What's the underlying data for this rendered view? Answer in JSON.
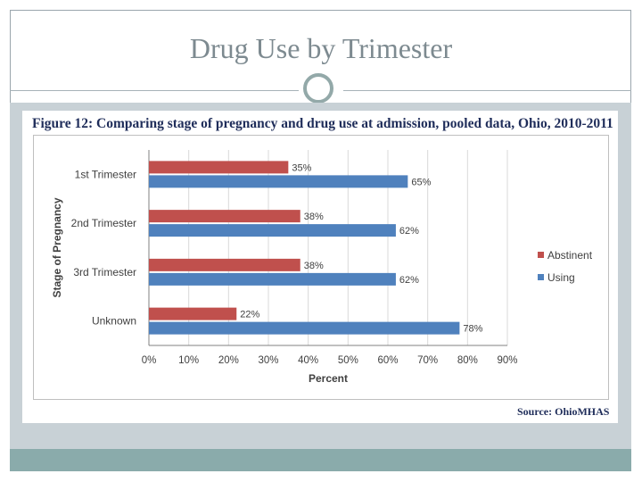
{
  "slide": {
    "title": "Drug Use by Trimester"
  },
  "figure": {
    "caption": "Figure 12: Comparing stage of pregnancy and drug use at admission, pooled data, Ohio, 2010-2011",
    "source": "Source: OhioMHAS"
  },
  "colors": {
    "abstinent": "#c0504d",
    "using": "#4f81bd"
  },
  "chart_data": {
    "type": "bar",
    "orientation": "horizontal",
    "categories": [
      "1st Trimester",
      "2nd Trimester",
      "3rd Trimester",
      "Unknown"
    ],
    "series": [
      {
        "name": "Abstinent",
        "values": [
          35,
          38,
          38,
          22
        ],
        "labels": [
          "35%",
          "38%",
          "38%",
          "22%"
        ]
      },
      {
        "name": "Using",
        "values": [
          65,
          62,
          62,
          78
        ],
        "labels": [
          "65%",
          "62%",
          "62%",
          "78%"
        ]
      }
    ],
    "xlabel": "Percent",
    "ylabel": "Stage of Pregnancy",
    "xlim": [
      0,
      90
    ],
    "xticks": [
      "0%",
      "10%",
      "20%",
      "30%",
      "40%",
      "50%",
      "60%",
      "70%",
      "80%",
      "90%"
    ],
    "grid": true,
    "legend": "right"
  }
}
